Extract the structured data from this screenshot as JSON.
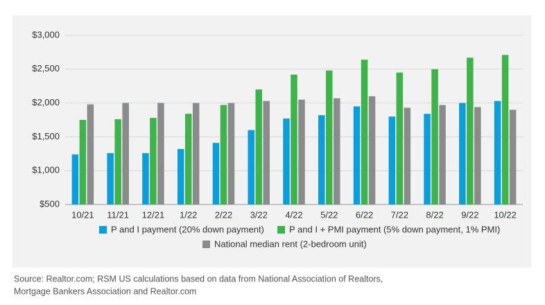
{
  "chart_data": {
    "type": "bar",
    "categories": [
      "10/21",
      "11/21",
      "12/21",
      "1/22",
      "2/22",
      "3/22",
      "4/22",
      "5/22",
      "6/22",
      "7/22",
      "8/22",
      "9/22",
      "10/22"
    ],
    "series": [
      {
        "name": "P and I payment (20% down payment)",
        "color": "#0a9fdc",
        "values": [
          1240,
          1260,
          1260,
          1320,
          1410,
          1600,
          1770,
          1820,
          1950,
          1800,
          1840,
          2000,
          2030
        ]
      },
      {
        "name": "P and I + PMI payment (5% down payment, 1% PMI)",
        "color": "#3db449",
        "values": [
          1750,
          1760,
          1780,
          1840,
          1970,
          2200,
          2420,
          2480,
          2640,
          2450,
          2500,
          2670,
          2710
        ]
      },
      {
        "name": "National median rent (2-bedroom unit)",
        "color": "#898b8d",
        "values": [
          1980,
          2000,
          2000,
          2000,
          2000,
          2030,
          2050,
          2070,
          2100,
          1930,
          1970,
          1940,
          1900
        ]
      }
    ],
    "ylim": [
      500,
      3000
    ],
    "yticks": [
      {
        "value": 500,
        "label": "$500"
      },
      {
        "value": 1000,
        "label": "$1,000"
      },
      {
        "value": 1500,
        "label": "$1,500"
      },
      {
        "value": 2000,
        "label": "$2,000"
      },
      {
        "value": 2500,
        "label": "$2,500"
      },
      {
        "value": 3000,
        "label": "$3,000"
      }
    ],
    "grid": true,
    "source": [
      "Source: Realtor.com; RSM US calculations based on data from National Association of Realtors,",
      "Mortgage Bankers Association and Realtor.com"
    ]
  }
}
